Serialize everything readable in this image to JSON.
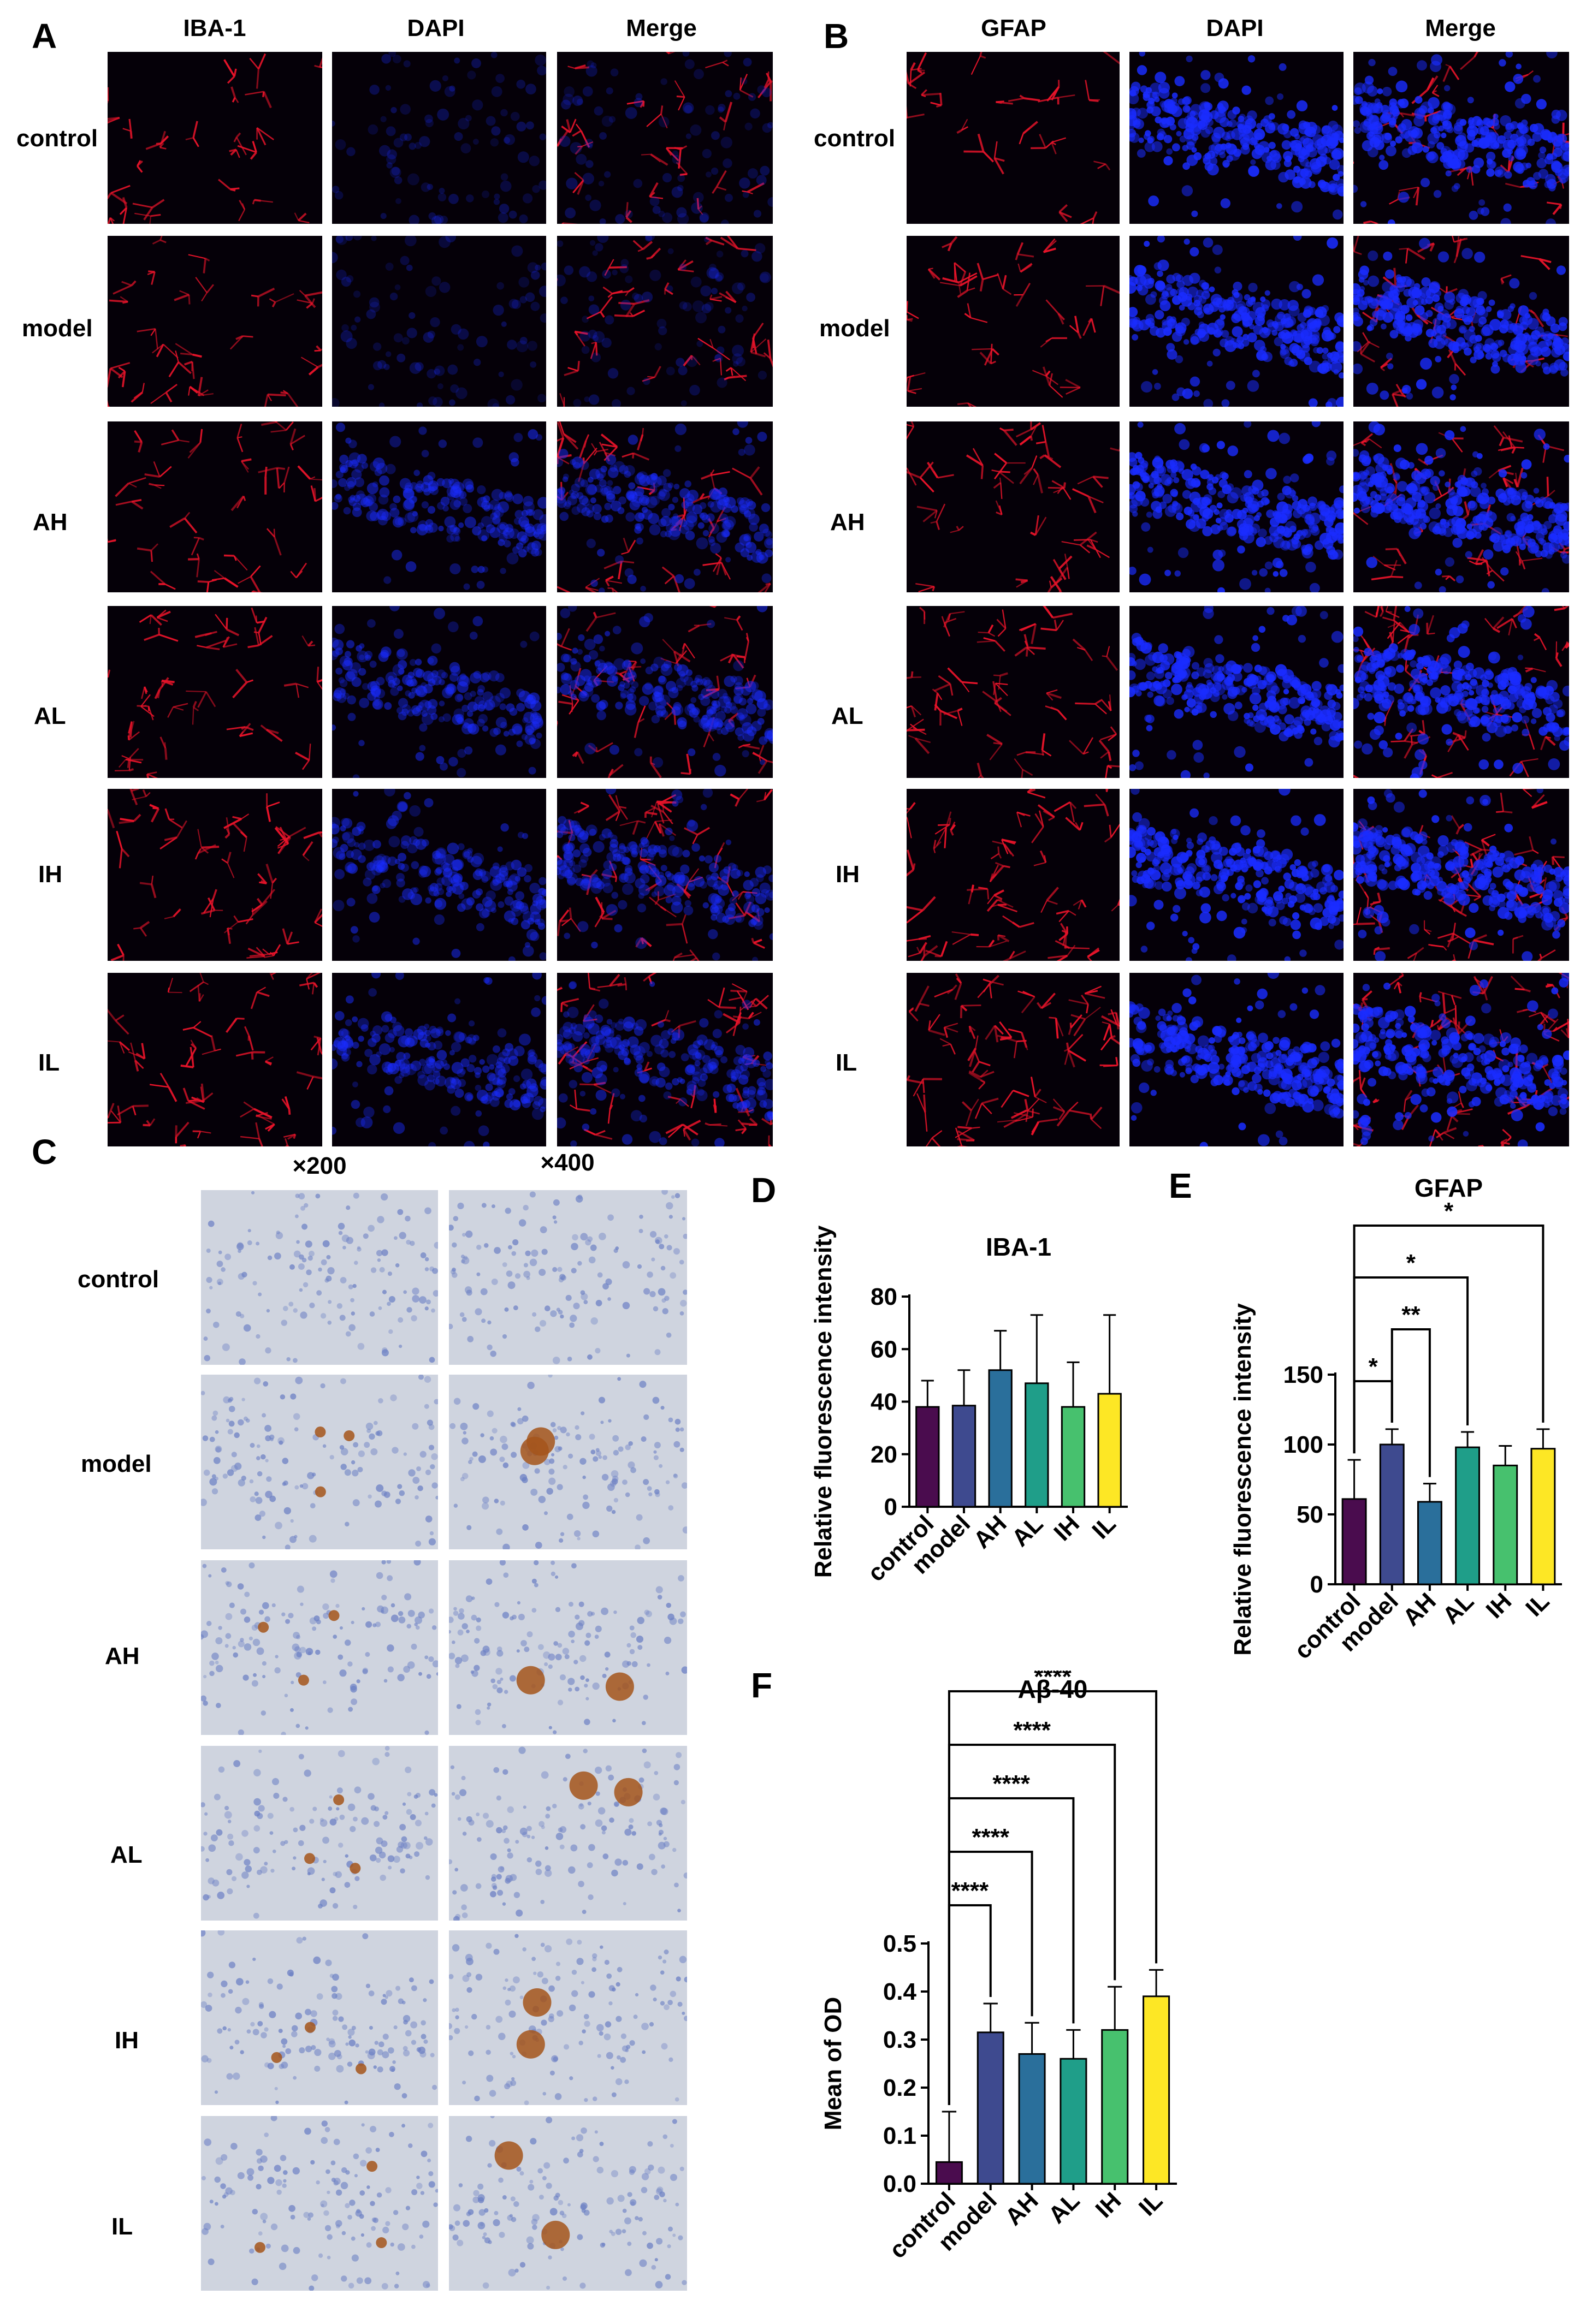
{
  "panels": {
    "A": {
      "letter": "A",
      "columns": [
        "IBA-1",
        "DAPI",
        "Merge"
      ],
      "rows": [
        "control",
        "model",
        "AH",
        "AL",
        "IH",
        "IL"
      ]
    },
    "B": {
      "letter": "B",
      "columns": [
        "GFAP",
        "DAPI",
        "Merge"
      ],
      "rows": [
        "control",
        "model",
        "AH",
        "AL",
        "IH",
        "IL"
      ]
    },
    "C": {
      "letter": "C",
      "columns": [
        "×200",
        "×400"
      ],
      "rows": [
        "control",
        "model",
        "AH",
        "AL",
        "IH",
        "IL"
      ]
    },
    "D": {
      "letter": "D"
    },
    "E": {
      "letter": "E"
    },
    "F": {
      "letter": "F"
    }
  },
  "colors": {
    "control": "#4a0c4e",
    "model": "#3e4a8f",
    "AH": "#2a6f9b",
    "AL": "#1f9e89",
    "IH": "#47c16e",
    "IL": "#fde725",
    "red_stain": "#e8142a",
    "blue_stain": "#1a2cff",
    "ihc_bg": "#cfd4df",
    "dab_brown": "#a4551b"
  },
  "chart_data": [
    {
      "panel": "D",
      "type": "bar",
      "title": "IBA-1",
      "ylabel": "Relative fluorescence intensity",
      "xlabel": "",
      "categories": [
        "control",
        "model",
        "AH",
        "AL",
        "IH",
        "IL"
      ],
      "values": [
        38,
        38.5,
        52,
        47,
        38,
        43
      ],
      "errors": [
        10,
        13.5,
        15,
        26,
        17,
        30
      ],
      "ylim": [
        0,
        80
      ],
      "yticks": [
        0,
        20,
        40,
        60,
        80
      ],
      "significance": []
    },
    {
      "panel": "E",
      "type": "bar",
      "title": "GFAP",
      "ylabel": "Relative fluorescence intensity",
      "xlabel": "",
      "categories": [
        "control",
        "model",
        "AH",
        "AL",
        "IH",
        "IL"
      ],
      "values": [
        61,
        100,
        59,
        98,
        85,
        97
      ],
      "errors": [
        28,
        11,
        13,
        11,
        14,
        14
      ],
      "ylim": [
        0,
        150
      ],
      "yticks": [
        0,
        50,
        100,
        150
      ],
      "significance": [
        {
          "from": "control",
          "to": "model",
          "label": "*"
        },
        {
          "from": "model",
          "to": "AH",
          "label": "**"
        },
        {
          "from": "control",
          "to": "AL",
          "label": "*"
        },
        {
          "from": "control",
          "to": "IL",
          "label": "*"
        }
      ]
    },
    {
      "panel": "F",
      "type": "bar",
      "title": "Aβ-40",
      "ylabel": "Mean of OD",
      "xlabel": "",
      "categories": [
        "control",
        "model",
        "AH",
        "AL",
        "IH",
        "IL"
      ],
      "values": [
        0.045,
        0.315,
        0.27,
        0.26,
        0.32,
        0.39
      ],
      "errors": [
        0.105,
        0.06,
        0.065,
        0.06,
        0.09,
        0.055
      ],
      "ylim": [
        0,
        0.5
      ],
      "yticks": [
        0.0,
        0.1,
        0.2,
        0.3,
        0.4,
        0.5
      ],
      "significance": [
        {
          "from": "control",
          "to": "model",
          "label": "****"
        },
        {
          "from": "control",
          "to": "AH",
          "label": "****"
        },
        {
          "from": "control",
          "to": "AL",
          "label": "****"
        },
        {
          "from": "control",
          "to": "IH",
          "label": "****"
        },
        {
          "from": "control",
          "to": "IL",
          "label": "****"
        }
      ]
    }
  ]
}
